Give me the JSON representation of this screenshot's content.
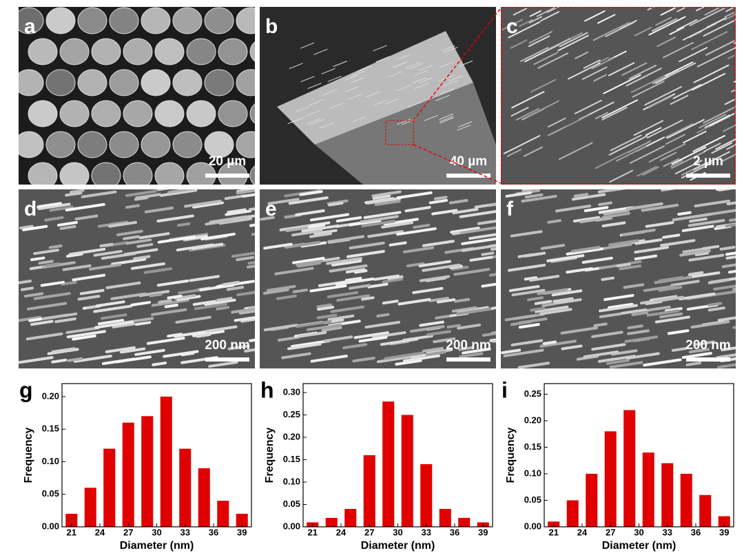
{
  "panels": [
    {
      "label": "a",
      "scale": "20 µm"
    },
    {
      "label": "b",
      "scale": "40 µm"
    },
    {
      "label": "c",
      "scale": "2 µm"
    },
    {
      "label": "d",
      "scale": "200 nm"
    },
    {
      "label": "e",
      "scale": "200 nm"
    },
    {
      "label": "f",
      "scale": "200 nm"
    }
  ],
  "chart_data": [
    {
      "type": "bar",
      "panel_label": "g",
      "xlabel": "Diameter (nm)",
      "ylabel": "Frequency",
      "color": "#e00000",
      "x": [
        21,
        23,
        25,
        27,
        29,
        31,
        33,
        35,
        37,
        39
      ],
      "values": [
        0.02,
        0.06,
        0.12,
        0.16,
        0.17,
        0.2,
        0.12,
        0.09,
        0.04,
        0.02
      ],
      "xlim": [
        20,
        40
      ],
      "xticks": [
        21,
        24,
        27,
        30,
        33,
        36,
        39
      ],
      "ylim": [
        0,
        0.22
      ],
      "yticks": [
        {
          "value": 0,
          "label": "0.00"
        },
        {
          "value": 0.05,
          "label": "0.05"
        },
        {
          "value": 0.1,
          "label": "0.10"
        },
        {
          "value": 0.15,
          "label": "0.15"
        },
        {
          "value": 0.2,
          "label": "0.20"
        }
      ]
    },
    {
      "type": "bar",
      "panel_label": "h",
      "xlabel": "Diameter (nm)",
      "ylabel": "Frequency",
      "color": "#e00000",
      "x": [
        21,
        23,
        25,
        27,
        29,
        31,
        33,
        35,
        37,
        39
      ],
      "values": [
        0.01,
        0.02,
        0.04,
        0.16,
        0.28,
        0.25,
        0.14,
        0.04,
        0.02,
        0.01
      ],
      "xlim": [
        20,
        40
      ],
      "xticks": [
        21,
        24,
        27,
        30,
        33,
        36,
        39
      ],
      "ylim": [
        0,
        0.32
      ],
      "yticks": [
        {
          "value": 0,
          "label": "0.00"
        },
        {
          "value": 0.05,
          "label": "0.05"
        },
        {
          "value": 0.1,
          "label": "0.10"
        },
        {
          "value": 0.15,
          "label": "0.15"
        },
        {
          "value": 0.2,
          "label": "0.20"
        },
        {
          "value": 0.25,
          "label": "0.25"
        },
        {
          "value": 0.3,
          "label": "0.30"
        }
      ]
    },
    {
      "type": "bar",
      "panel_label": "i",
      "xlabel": "Diameter (nm)",
      "ylabel": "Frequency",
      "color": "#e00000",
      "x": [
        21,
        23,
        25,
        27,
        29,
        31,
        33,
        35,
        37,
        39
      ],
      "values": [
        0.01,
        0.05,
        0.1,
        0.18,
        0.22,
        0.14,
        0.12,
        0.1,
        0.06,
        0.02
      ],
      "xlim": [
        20,
        40
      ],
      "xticks": [
        21,
        24,
        27,
        30,
        33,
        36,
        39
      ],
      "ylim": [
        0,
        0.27
      ],
      "yticks": [
        {
          "value": 0,
          "label": "0.00"
        },
        {
          "value": 0.05,
          "label": "0.05"
        },
        {
          "value": 0.1,
          "label": "0.10"
        },
        {
          "value": 0.15,
          "label": "0.15"
        },
        {
          "value": 0.2,
          "label": "0.20"
        },
        {
          "value": 0.25,
          "label": "0.25"
        }
      ]
    }
  ]
}
